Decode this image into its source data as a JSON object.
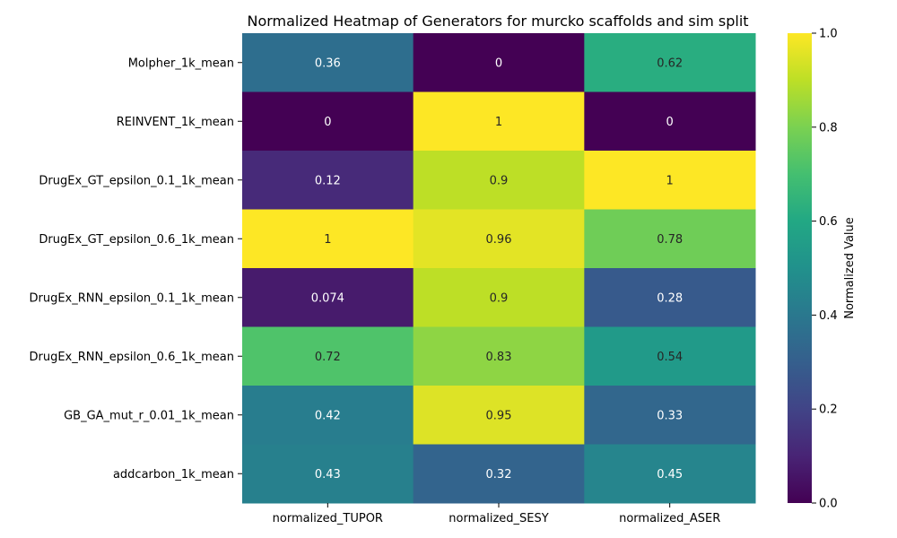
{
  "chart_data": {
    "type": "heatmap",
    "title": "Normalized Heatmap of Generators for murcko scaffolds and sim split",
    "xlabel": "",
    "ylabel": "",
    "columns": [
      "normalized_TUPOR",
      "normalized_SESY",
      "normalized_ASER"
    ],
    "rows": [
      "Molpher_1k_mean",
      "REINVENT_1k_mean",
      "DrugEx_GT_epsilon_0.1_1k_mean",
      "DrugEx_GT_epsilon_0.6_1k_mean",
      "DrugEx_RNN_epsilon_0.1_1k_mean",
      "DrugEx_RNN_epsilon_0.6_1k_mean",
      "GB_GA_mut_r_0.01_1k_mean",
      "addcarbon_1k_mean"
    ],
    "values": [
      [
        0.36,
        0,
        0.62
      ],
      [
        0,
        1,
        0
      ],
      [
        0.12,
        0.9,
        1
      ],
      [
        1,
        0.96,
        0.78
      ],
      [
        0.074,
        0.9,
        0.28
      ],
      [
        0.72,
        0.83,
        0.54
      ],
      [
        0.42,
        0.95,
        0.33
      ],
      [
        0.43,
        0.32,
        0.45
      ]
    ],
    "annotations": [
      [
        "0.36",
        "0",
        "0.62"
      ],
      [
        "0",
        "1",
        "0"
      ],
      [
        "0.12",
        "0.9",
        "1"
      ],
      [
        "1",
        "0.96",
        "0.78"
      ],
      [
        "0.074",
        "0.9",
        "0.28"
      ],
      [
        "0.72",
        "0.83",
        "0.54"
      ],
      [
        "0.42",
        "0.95",
        "0.33"
      ],
      [
        "0.43",
        "0.32",
        "0.45"
      ]
    ],
    "colormap": "viridis",
    "vmin": 0,
    "vmax": 1,
    "colorbar": {
      "label": "Normalized Value",
      "ticks": [
        "0.0",
        "0.2",
        "0.4",
        "0.6",
        "0.8",
        "1.0"
      ]
    }
  }
}
